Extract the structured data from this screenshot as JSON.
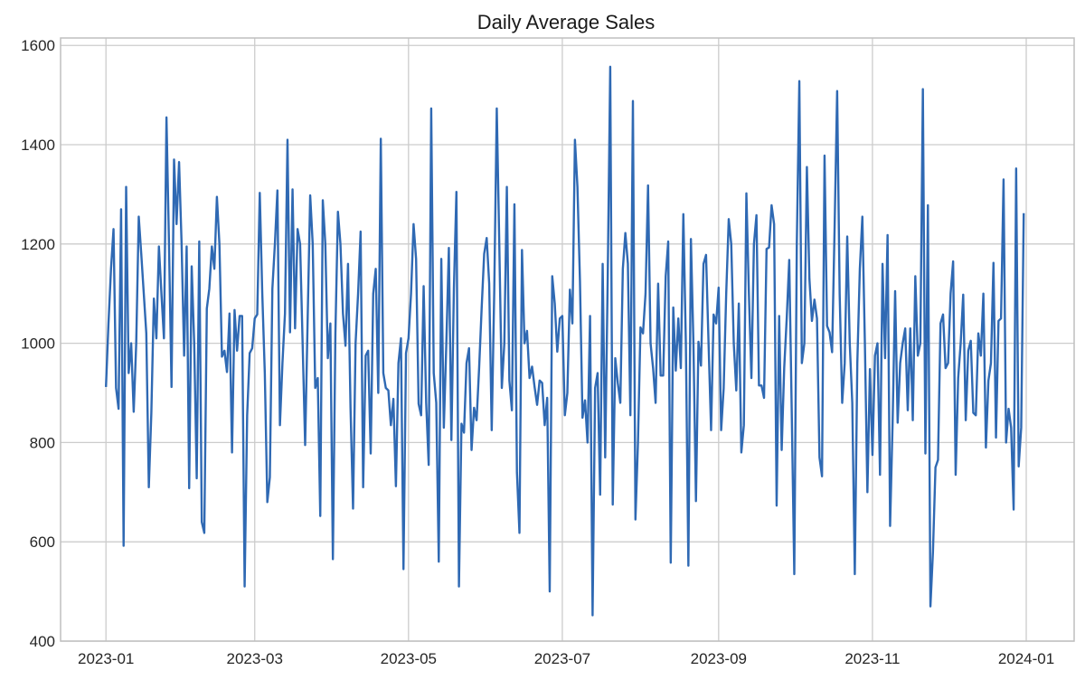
{
  "chart_data": {
    "type": "line",
    "title": "Daily Average Sales",
    "xlabel": "",
    "ylabel": "",
    "ylim": [
      400,
      1615
    ],
    "xlim": [
      "2022-12-14",
      "2024-01-20"
    ],
    "grid": true,
    "legend": "none",
    "x_ticks": [
      "2023-01",
      "2023-03",
      "2023-05",
      "2023-07",
      "2023-09",
      "2023-11",
      "2024-01"
    ],
    "y_ticks": [
      400,
      600,
      800,
      1000,
      1200,
      1400,
      1600
    ],
    "colors": {
      "line": "#2f69b3",
      "grid": "#cccccc",
      "frame": "#bfbfbf"
    },
    "daily_values_by_month": {
      "2023-01": [
        912,
        1040,
        1150,
        1230,
        910,
        868,
        1270,
        592,
        1315,
        940,
        1000,
        862,
        1000,
        1255,
        1180,
        1100,
        1020,
        710,
        860,
        1090,
        1010,
        1195,
        1100,
        1010,
        1455,
        1200,
        912,
        1370,
        1240,
        1365,
        1200
      ],
      "2023-02": [
        975,
        1195,
        708,
        1155,
        1000,
        728,
        1205,
        640,
        618,
        1070,
        1110,
        1195,
        1150,
        1295,
        1200,
        973,
        985,
        942,
        1060,
        780,
        1067,
        985,
        1055,
        1055,
        510,
        855,
        980,
        990
      ],
      "2023-03": [
        1050,
        1058,
        1303,
        1100,
        940,
        680,
        730,
        1110,
        1200,
        1308,
        835,
        960,
        1060,
        1410,
        1022,
        1310,
        1030,
        1230,
        1200,
        1000,
        795,
        1050,
        1298,
        1200,
        910,
        930,
        652,
        1288,
        1200,
        970,
        1040
      ],
      "2023-04": [
        565,
        1020,
        1265,
        1200,
        1060,
        995,
        1160,
        870,
        667,
        1000,
        1100,
        1225,
        710,
        975,
        985,
        778,
        1100,
        1150,
        900,
        1412,
        940,
        910,
        905,
        835,
        888,
        712,
        960,
        1010,
        545,
        980
      ],
      "2023-05": [
        1010,
        1100,
        1240,
        1170,
        878,
        855,
        1115,
        880,
        755,
        1473,
        940,
        880,
        560,
        1170,
        830,
        1000,
        1192,
        805,
        1110,
        1305,
        510,
        838,
        820,
        960,
        990,
        785,
        870,
        845,
        950,
        1070,
        1180
      ],
      "2023-06": [
        1212,
        1120,
        825,
        1105,
        1473,
        1200,
        910,
        1000,
        1315,
        925,
        865,
        1280,
        740,
        618,
        1188,
        1000,
        1025,
        930,
        953,
        912,
        876,
        925,
        920,
        835,
        890,
        500,
        1135,
        1080,
        983,
        1050
      ],
      "2023-07": [
        1055,
        855,
        900,
        1108,
        1040,
        1410,
        1315,
        1125,
        850,
        885,
        800,
        1055,
        452,
        910,
        940,
        695,
        1160,
        770,
        1130,
        1557,
        675,
        970,
        920,
        880,
        1150,
        1222,
        1160,
        855,
        1488,
        645,
        800
      ],
      "2023-08": [
        1032,
        1020,
        1100,
        1318,
        1000,
        950,
        880,
        1120,
        935,
        935,
        1135,
        1205,
        558,
        1072,
        945,
        1050,
        950,
        1260,
        1000,
        552,
        1210,
        1000,
        682,
        1003,
        955,
        1160,
        1178,
        1000,
        825,
        1058,
        1040
      ],
      "2023-09": [
        1112,
        825,
        910,
        1100,
        1250,
        1200,
        1000,
        905,
        1080,
        780,
        835,
        1302,
        1100,
        930,
        1200,
        1258,
        915,
        915,
        890,
        1190,
        1193,
        1278,
        1240,
        673,
        1055,
        785,
        950,
        1050,
        1168,
        860
      ],
      "2023-10": [
        535,
        1200,
        1528,
        960,
        1000,
        1355,
        1130,
        1045,
        1088,
        1050,
        770,
        732,
        1378,
        1035,
        1022,
        982,
        1235,
        1508,
        1100,
        880,
        960,
        1215,
        1000,
        880,
        535,
        960,
        1150,
        1255,
        1000,
        700,
        948
      ],
      "2023-11": [
        775,
        975,
        1000,
        735,
        1160,
        970,
        1218,
        632,
        840,
        1105,
        840,
        960,
        1000,
        1030,
        865,
        1030,
        845,
        1135,
        975,
        1000,
        1512,
        778,
        1278,
        470,
        580,
        750,
        765,
        1040,
        1058,
        950
      ],
      "2023-12": [
        960,
        1100,
        1165,
        735,
        930,
        1000,
        1098,
        845,
        985,
        1005,
        860,
        855,
        1020,
        975,
        1100,
        790,
        925,
        960,
        1162,
        810,
        1045,
        1050,
        1330,
        800,
        868,
        830,
        665,
        1352,
        752,
        830,
        1262
      ]
    }
  }
}
